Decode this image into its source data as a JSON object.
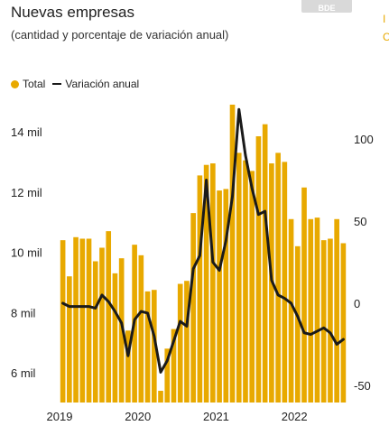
{
  "title": "Nuevas empresas",
  "subtitle": "(cantidad y porcentaje de variación anual)",
  "badge": "BDE",
  "edge_glyphs": [
    "I",
    "C"
  ],
  "colors": {
    "bar": "#E8A900",
    "line": "#1a1a1a",
    "background": "#ffffff"
  },
  "chart_data": {
    "type": "bar",
    "legend_placement": "top-left",
    "grid": false,
    "x_tick_labels": [
      "2019",
      "2020",
      "2021",
      "2022"
    ],
    "y_left_ticks": [
      "6 mil",
      "8 mil",
      "10 mil",
      "12 mil",
      "14 mil"
    ],
    "y_left_tick_values": [
      6000,
      8000,
      10000,
      12000,
      14000
    ],
    "y_left_range": [
      5000,
      15400
    ],
    "y_right_ticks": [
      "-50",
      "0",
      "50",
      "100"
    ],
    "y_right_tick_values": [
      -50,
      0,
      50,
      100
    ],
    "y_right_range": [
      -55,
      120
    ],
    "series": [
      {
        "name": "Total",
        "type": "bar",
        "axis": "left",
        "values": [
          10400,
          9200,
          10500,
          10450,
          10450,
          9700,
          10150,
          10700,
          9300,
          9800,
          7400,
          10250,
          9900,
          8700,
          8750,
          5400,
          6800,
          7450,
          8950,
          9050,
          11300,
          12550,
          12900,
          12950,
          12050,
          12100,
          14900,
          13300,
          13050,
          12700,
          13850,
          14250,
          12950,
          13300,
          13000,
          11100,
          10200,
          12150,
          11100,
          11150,
          10400,
          10450,
          11100,
          10300
        ]
      },
      {
        "name": "Variación anual",
        "type": "line",
        "axis": "right",
        "values": [
          0,
          -2,
          -2,
          -2,
          -2,
          -3,
          5,
          1,
          -5,
          -12,
          -32,
          -10,
          -5,
          -6,
          -20,
          -42,
          -35,
          -23,
          -11,
          -14,
          21,
          29,
          75,
          25,
          20,
          38,
          65,
          118,
          90,
          70,
          54,
          56,
          14,
          5,
          3,
          0,
          -8,
          -18,
          -19,
          -17,
          -15,
          -18,
          -25,
          -22
        ]
      }
    ]
  }
}
